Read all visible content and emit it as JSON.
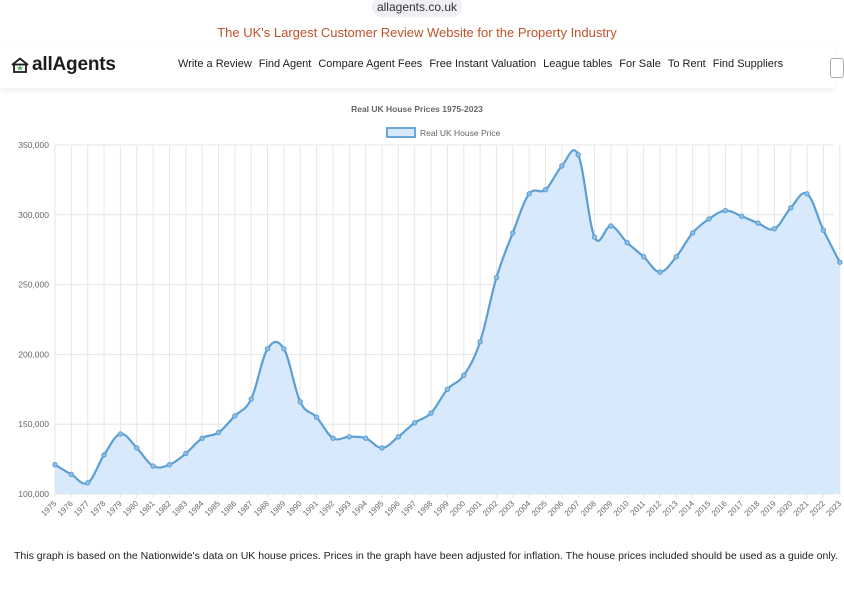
{
  "browser": {
    "url": "allagents.co.uk"
  },
  "banner": "The UK's Largest Customer Review Website for the Property Industry",
  "header": {
    "logo_text": "allAgents",
    "nav": [
      "Write a Review",
      "Find Agent",
      "Compare Agent Fees",
      "Free Instant Valuation",
      "League tables",
      "For Sale",
      "To Rent",
      "Find Suppliers"
    ]
  },
  "chart_data": {
    "type": "area",
    "title": "Real UK House Prices 1975-2023",
    "legend_position": "top",
    "grid": true,
    "series": [
      {
        "name": "Real UK House Price",
        "values": [
          121000,
          114000,
          108000,
          128000,
          143000,
          133000,
          120000,
          121000,
          129000,
          140000,
          144000,
          156000,
          168000,
          204000,
          204000,
          166000,
          155000,
          140000,
          141000,
          140000,
          133000,
          141000,
          151000,
          158000,
          175000,
          185000,
          209000,
          255000,
          287000,
          315000,
          318000,
          335000,
          343000,
          284000,
          292000,
          280000,
          270000,
          259000,
          270000,
          287000,
          297000,
          303000,
          299000,
          294000,
          290000,
          305000,
          315000,
          289000,
          266000
        ]
      }
    ],
    "x": [
      "1975",
      "1976",
      "1977",
      "1978",
      "1979",
      "1980",
      "1981",
      "1982",
      "1983",
      "1984",
      "1985",
      "1986",
      "1987",
      "1988",
      "1989",
      "1990",
      "1991",
      "1992",
      "1993",
      "1994",
      "1995",
      "1996",
      "1997",
      "1998",
      "1999",
      "2000",
      "2001",
      "2002",
      "2003",
      "2004",
      "2005",
      "2006",
      "2007",
      "2008",
      "2009",
      "2010",
      "2011",
      "2012",
      "2013",
      "2014",
      "2015",
      "2016",
      "2017",
      "2018",
      "2019",
      "2020",
      "2021",
      "2022",
      "2023"
    ],
    "ylim": [
      100000,
      350000
    ],
    "yticks": [
      "100,000",
      "150,000",
      "200,000",
      "250,000",
      "300,000",
      "350,000"
    ],
    "colors": {
      "line": "#5b9fd4",
      "fill": "#d8e9fb",
      "grid": "#e6e6e6"
    }
  },
  "footer": "This graph is based on the Nationwide's data on UK house prices. Prices in the graph have been adjusted for inflation. The house prices included should be used as a guide only."
}
